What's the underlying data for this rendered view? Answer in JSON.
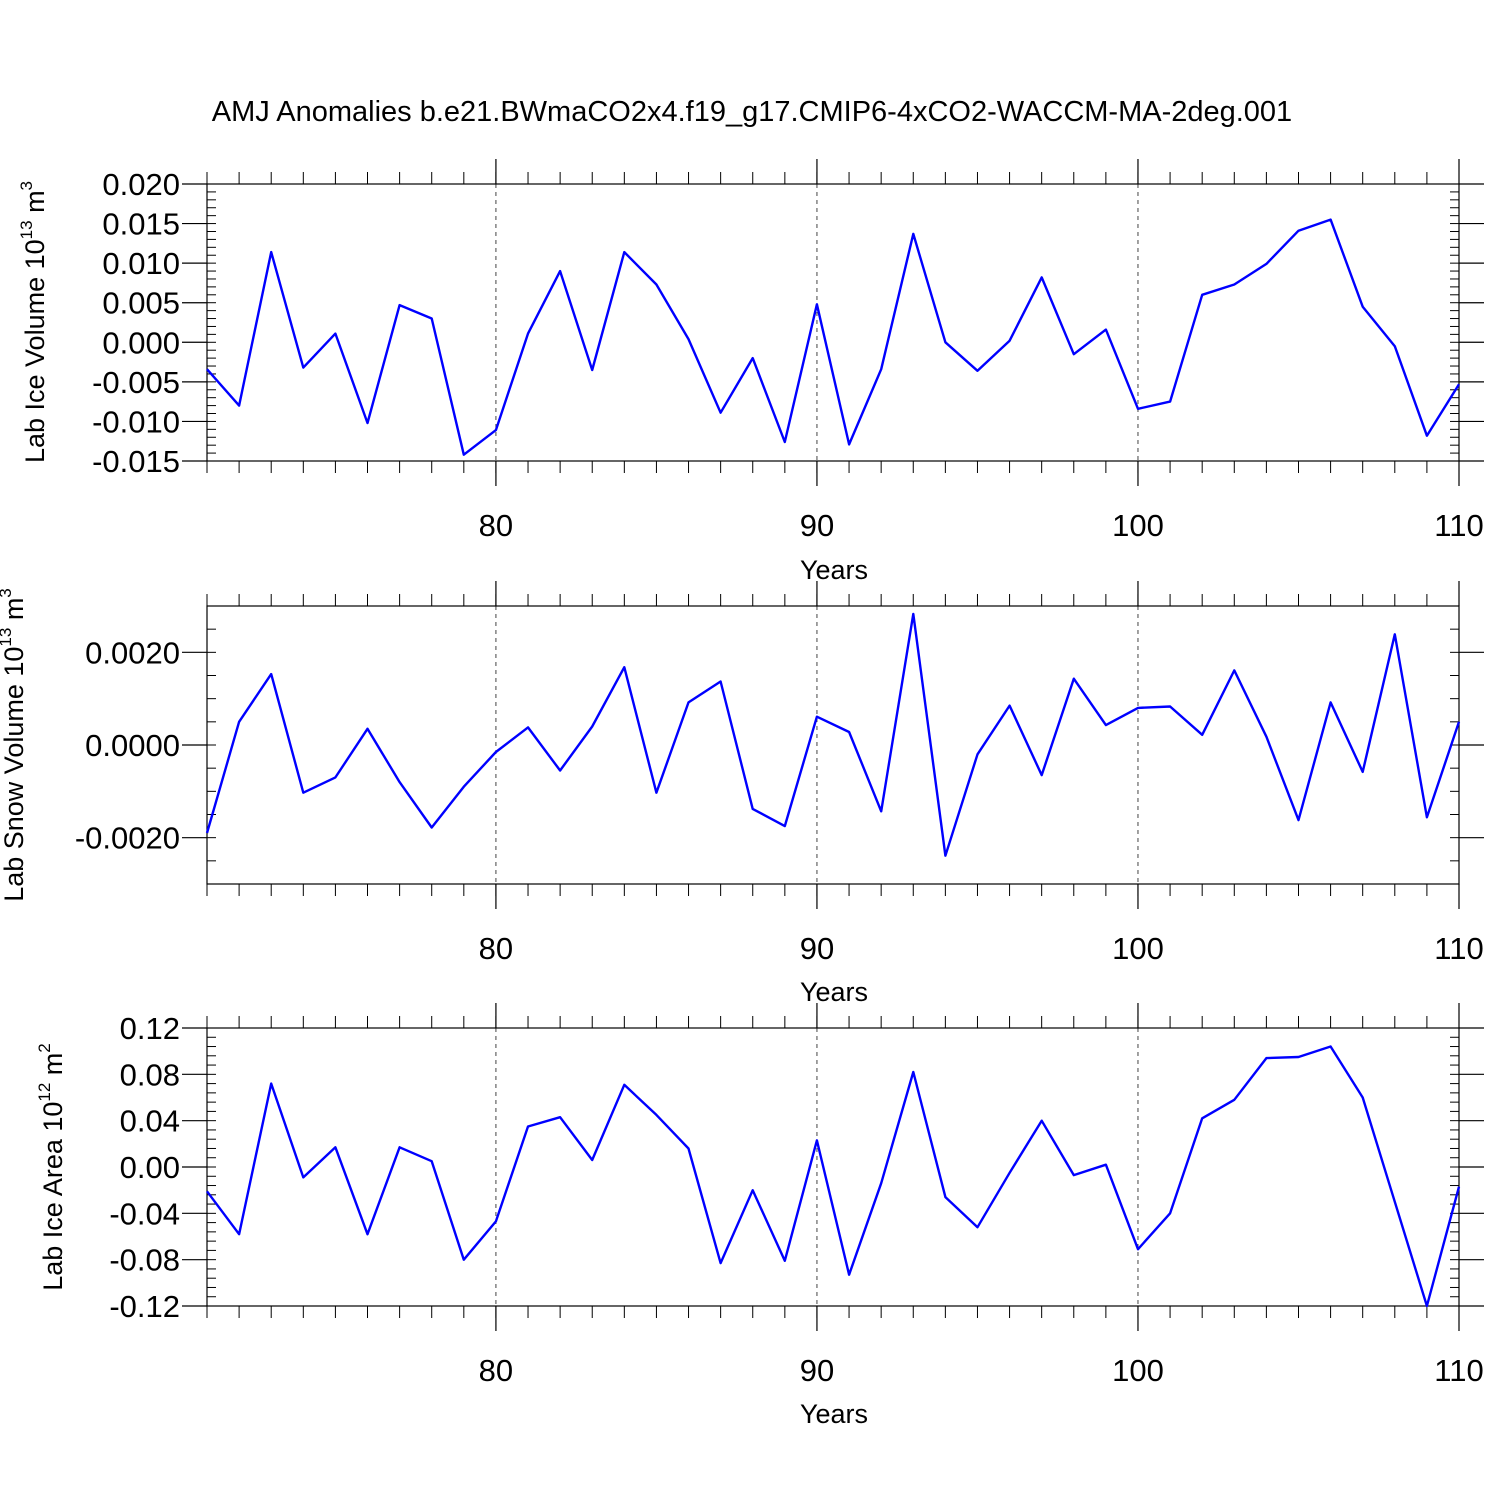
{
  "title": "AMJ Anomalies b.e21.BWmaCO2x4.f19_g17.CMIP6-4xCO2-WACCM-MA-2deg.001",
  "colors": {
    "line": "#0000ff",
    "axis": "#000000",
    "grid": "#444444"
  },
  "chart_data": [
    {
      "type": "line",
      "xlabel": "Years",
      "ylabel": {
        "text": "Lab Ice Volume 10",
        "sup": "13",
        "unit": " m",
        "unit_sup": "3"
      },
      "xlim": [
        71,
        110
      ],
      "ylim": [
        -0.015,
        0.02
      ],
      "x_major_ticks": [
        80,
        90,
        100,
        110
      ],
      "x_tick_labels": [
        "80",
        "90",
        "100",
        "110"
      ],
      "y_major_ticks": [
        -0.015,
        -0.01,
        -0.005,
        0.0,
        0.005,
        0.01,
        0.015,
        0.02
      ],
      "y_tick_labels": [
        "-0.015",
        "-0.010",
        "-0.005",
        "0.000",
        "0.005",
        "0.010",
        "0.015",
        "0.020"
      ],
      "y_minor_step": 0.001,
      "grid": "dashed vertical at major x ticks",
      "x": [
        71,
        72,
        73,
        74,
        75,
        76,
        77,
        78,
        79,
        80,
        81,
        82,
        83,
        84,
        85,
        86,
        87,
        88,
        89,
        90,
        91,
        92,
        93,
        94,
        95,
        96,
        97,
        98,
        99,
        100,
        101,
        102,
        103,
        104,
        105,
        106,
        107,
        108,
        109,
        110
      ],
      "values": [
        -0.0034,
        -0.008,
        0.0114,
        -0.0032,
        0.0011,
        -0.0102,
        0.0047,
        0.003,
        -0.0142,
        -0.0111,
        0.0011,
        0.009,
        -0.0035,
        0.0114,
        0.0073,
        0.0004,
        -0.0089,
        -0.002,
        -0.0126,
        0.0048,
        -0.0129,
        -0.0034,
        0.0137,
        0.0,
        -0.0036,
        0.0002,
        0.0082,
        -0.0015,
        0.0016,
        -0.0084,
        -0.0075,
        0.006,
        0.0073,
        0.0099,
        0.0141,
        0.0155,
        0.0045,
        -0.0005,
        -0.0118,
        -0.0053
      ]
    },
    {
      "type": "line",
      "xlabel": "Years",
      "ylabel": {
        "text": "Lab Snow Volume 10",
        "sup": "13",
        "unit": " m",
        "unit_sup": "3"
      },
      "xlim": [
        71,
        110
      ],
      "ylim": [
        -0.003,
        0.003
      ],
      "x_major_ticks": [
        80,
        90,
        100,
        110
      ],
      "x_tick_labels": [
        "80",
        "90",
        "100",
        "110"
      ],
      "y_major_ticks": [
        -0.002,
        0.0,
        0.002
      ],
      "y_tick_labels": [
        "-0.0020",
        "0.0000",
        "0.0020"
      ],
      "y_minor_step": 0.0005,
      "grid": "dashed vertical at major x ticks",
      "x": [
        71,
        72,
        73,
        74,
        75,
        76,
        77,
        78,
        79,
        80,
        81,
        82,
        83,
        84,
        85,
        86,
        87,
        88,
        89,
        90,
        91,
        92,
        93,
        94,
        95,
        96,
        97,
        98,
        99,
        100,
        101,
        102,
        103,
        104,
        105,
        106,
        107,
        108,
        109,
        110
      ],
      "values": [
        -0.0019,
        0.0005,
        0.00153,
        -0.00103,
        -0.0007,
        0.00035,
        -0.0008,
        -0.00178,
        -0.0009,
        -0.00015,
        0.00038,
        -0.00055,
        0.0004,
        0.00168,
        -0.00103,
        0.00092,
        0.00137,
        -0.00138,
        -0.00175,
        0.00061,
        0.00028,
        -0.00143,
        0.00283,
        -0.00239,
        -0.0002,
        0.00085,
        -0.00065,
        0.00143,
        0.00043,
        0.0008,
        0.00083,
        0.00022,
        0.00161,
        0.00018,
        -0.00162,
        0.00092,
        -0.00058,
        0.00239,
        -0.00156,
        0.0005
      ]
    },
    {
      "type": "line",
      "xlabel": "Years",
      "ylabel": {
        "text": "Lab Ice Area 10",
        "sup": "12",
        "unit": " m",
        "unit_sup": "2"
      },
      "xlim": [
        71,
        110
      ],
      "ylim": [
        -0.12,
        0.12
      ],
      "x_major_ticks": [
        80,
        90,
        100,
        110
      ],
      "x_tick_labels": [
        "80",
        "90",
        "100",
        "110"
      ],
      "y_major_ticks": [
        -0.12,
        -0.08,
        -0.04,
        0.0,
        0.04,
        0.08,
        0.12
      ],
      "y_tick_labels": [
        "-0.12",
        "-0.08",
        "-0.04",
        "0.00",
        "0.04",
        "0.08",
        "0.12"
      ],
      "y_minor_step": 0.008,
      "grid": "dashed vertical at major x ticks",
      "x": [
        71,
        72,
        73,
        74,
        75,
        76,
        77,
        78,
        79,
        80,
        81,
        82,
        83,
        84,
        85,
        86,
        87,
        88,
        89,
        90,
        91,
        92,
        93,
        94,
        95,
        96,
        97,
        98,
        99,
        100,
        101,
        102,
        103,
        104,
        105,
        106,
        107,
        108,
        109,
        110
      ],
      "values": [
        -0.021,
        -0.058,
        0.072,
        -0.009,
        0.017,
        -0.058,
        0.017,
        0.005,
        -0.08,
        -0.047,
        0.035,
        0.043,
        0.006,
        0.071,
        0.045,
        0.016,
        -0.083,
        -0.02,
        -0.081,
        0.023,
        -0.093,
        -0.014,
        0.082,
        -0.026,
        -0.052,
        -0.005,
        0.04,
        -0.007,
        0.002,
        -0.071,
        -0.04,
        0.042,
        0.058,
        0.094,
        0.095,
        0.104,
        0.06,
        -0.03,
        -0.12,
        -0.017
      ]
    }
  ]
}
